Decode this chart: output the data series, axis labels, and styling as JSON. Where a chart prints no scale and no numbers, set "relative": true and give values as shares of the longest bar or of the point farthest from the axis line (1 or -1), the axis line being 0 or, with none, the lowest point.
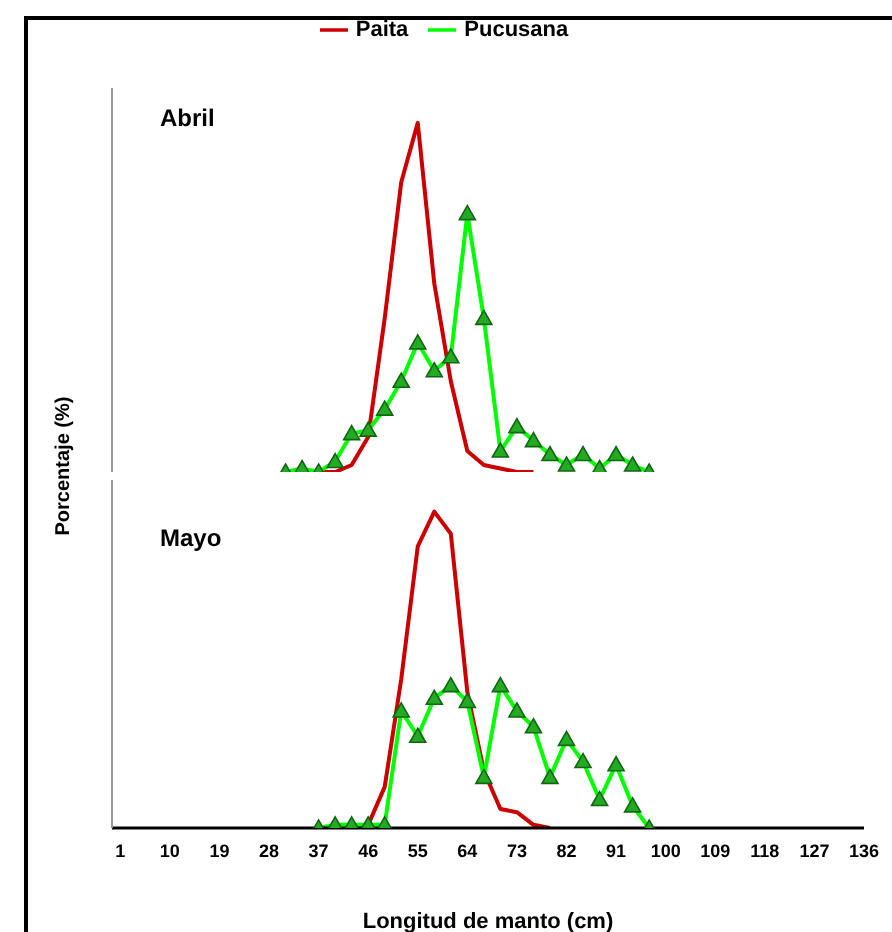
{
  "chart_data": [
    {
      "type": "line",
      "title": "Abril",
      "ylabel": "Porcentaje (%)",
      "relative": true,
      "legend": "top",
      "tick_labels": false,
      "xlim": [
        -0.5,
        136
      ],
      "xticks": [
        1,
        10,
        19,
        28,
        37,
        46,
        55,
        64,
        73,
        82,
        91,
        100,
        109,
        118,
        127,
        136
      ],
      "series": [
        {
          "name": "Paita",
          "color": "#cc0000",
          "marker": "none",
          "x": [
            37,
            40,
            43,
            46,
            49,
            52,
            55,
            58,
            61,
            64,
            67,
            70,
            73,
            76
          ],
          "values": [
            0,
            0,
            0.02,
            0.1,
            0.44,
            0.83,
            1,
            0.54,
            0.26,
            0.06,
            0.02,
            0.01,
            0,
            0
          ]
        },
        {
          "name": "Pucusana",
          "color": "#00ff00",
          "marker": "triangle",
          "x": [
            31,
            34,
            37,
            40,
            43,
            46,
            49,
            52,
            55,
            58,
            61,
            64,
            67,
            70,
            73,
            76,
            79,
            82,
            85,
            88,
            91,
            94,
            97
          ],
          "values": [
            0,
            0.01,
            0,
            0.03,
            0.11,
            0.12,
            0.18,
            0.26,
            0.37,
            0.29,
            0.33,
            0.74,
            0.44,
            0.06,
            0.13,
            0.09,
            0.05,
            0.02,
            0.05,
            0.01,
            0.05,
            0.02,
            0
          ]
        }
      ]
    },
    {
      "type": "line",
      "title": "Mayo",
      "xlabel": "Longitud de manto (cm)",
      "relative": true,
      "tick_labels": "x",
      "xlim": [
        -0.5,
        136
      ],
      "xticks": [
        1,
        10,
        19,
        28,
        37,
        46,
        55,
        64,
        73,
        82,
        91,
        100,
        109,
        118,
        127,
        136
      ],
      "series": [
        {
          "color": "#cc0000",
          "marker": "none",
          "x": [
            43,
            46,
            49,
            52,
            55,
            58,
            61,
            64,
            67,
            70,
            73,
            76,
            79
          ],
          "values": [
            0,
            0.01,
            0.13,
            0.47,
            0.89,
            1,
            0.93,
            0.43,
            0.18,
            0.06,
            0.05,
            0.01,
            0
          ]
        },
        {
          "color": "#00ff00",
          "marker": "triangle",
          "x": [
            37,
            40,
            43,
            46,
            49,
            52,
            55,
            58,
            61,
            64,
            67,
            70,
            73,
            76,
            79,
            82,
            85,
            88,
            91,
            94,
            97
          ],
          "values": [
            0,
            0.01,
            0.01,
            0.01,
            0.01,
            0.37,
            0.29,
            0.41,
            0.45,
            0.4,
            0.16,
            0.45,
            0.37,
            0.32,
            0.16,
            0.28,
            0.21,
            0.09,
            0.2,
            0.07,
            0
          ]
        }
      ]
    }
  ]
}
